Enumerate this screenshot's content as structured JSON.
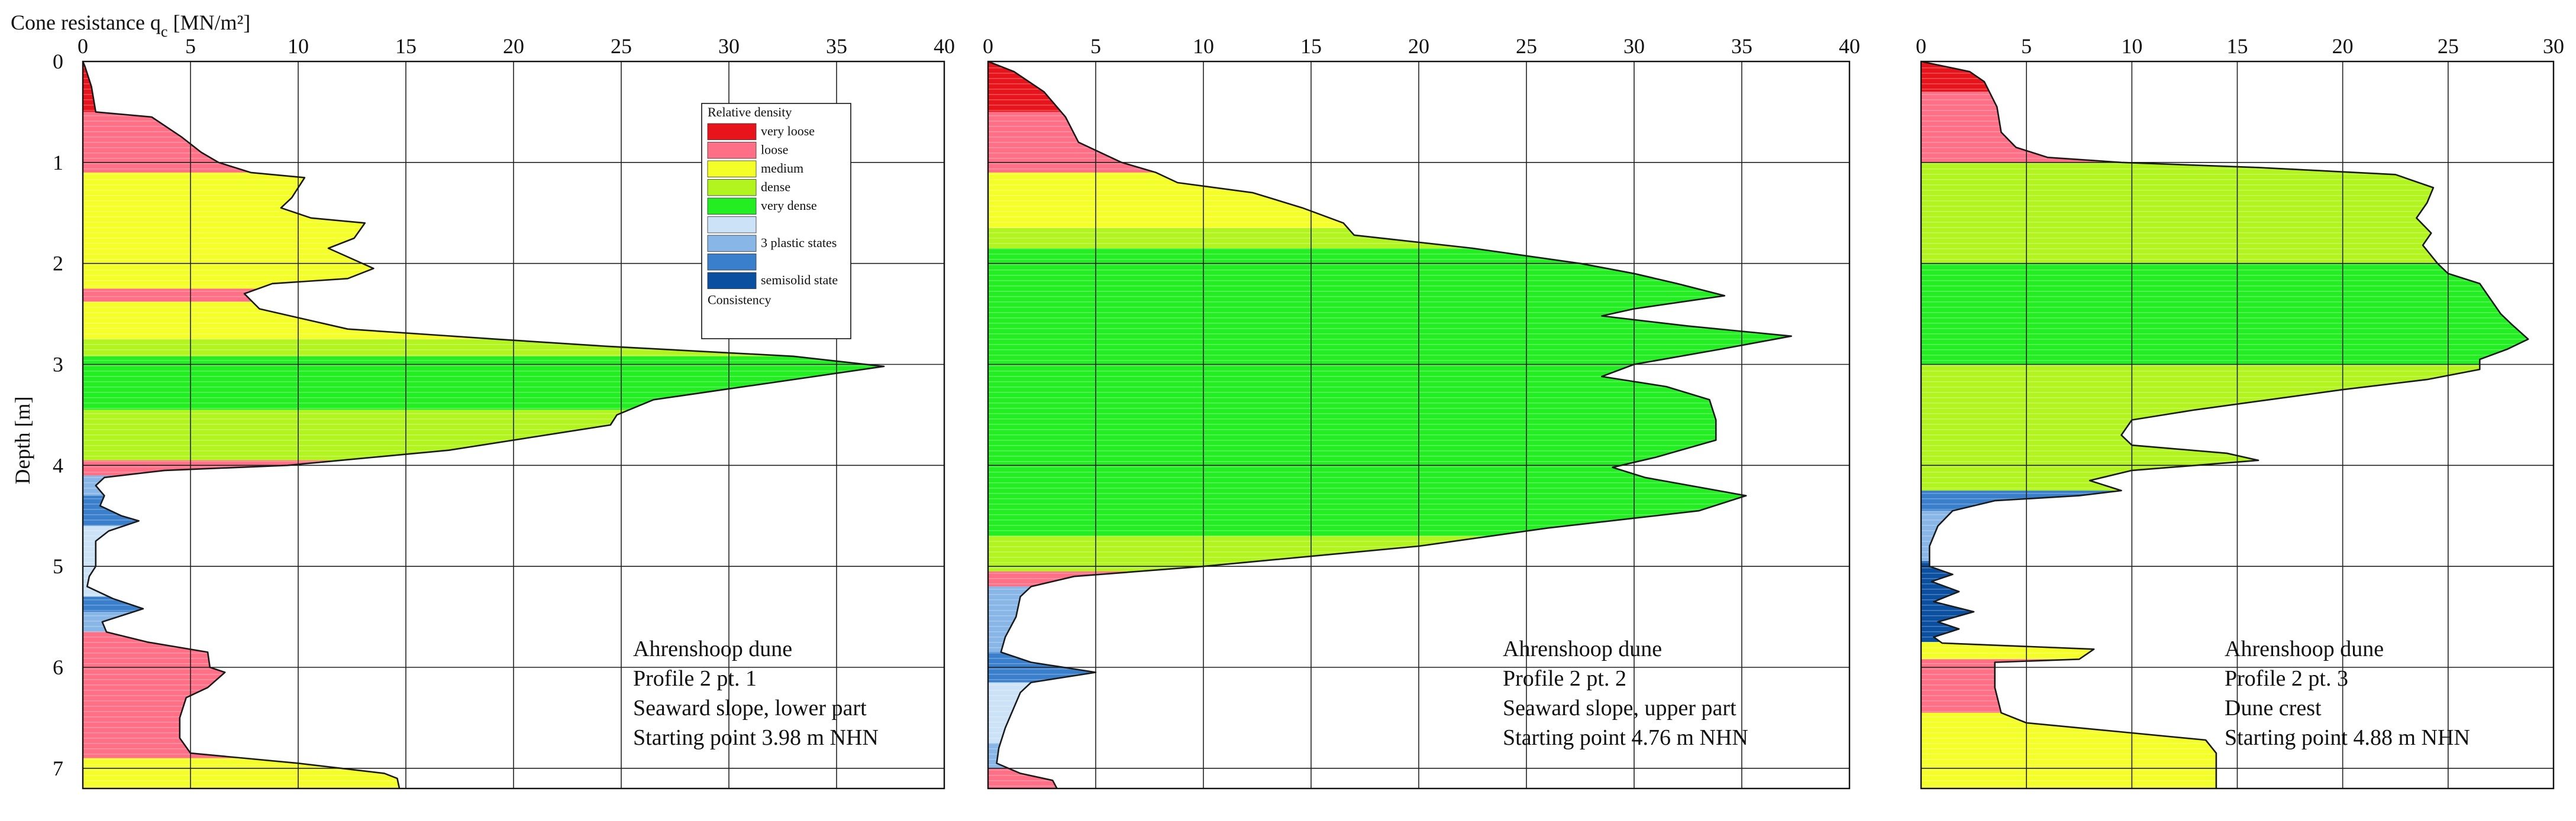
{
  "colors": {
    "very_loose": "#e8141c",
    "loose": "#ff6f86",
    "medium": "#f4ff28",
    "dense": "#b2f41e",
    "very_dense": "#22ee22",
    "plastic_1": "#cce2f6",
    "plastic_2": "#88b6e6",
    "plastic_3": "#3a7fcc",
    "semisolid": "#0b4fa0"
  },
  "chart_data": [
    {
      "type": "area",
      "orientation": "vertical-profile",
      "title": "",
      "xlabel": "Cone resistance q",
      "xlabel_sub": "c",
      "xlabel_unit": " [MN/m²]",
      "ylabel": "Depth [m]",
      "xlim": [
        0,
        40
      ],
      "ylim": [
        0,
        7.2
      ],
      "xticks": [
        "0",
        "5",
        "10",
        "15",
        "20",
        "25",
        "30",
        "35",
        "40"
      ],
      "yticks": [
        "0",
        "1",
        "2",
        "3",
        "4",
        "5",
        "6",
        "7"
      ],
      "grid": true,
      "annotation": [
        "Ahrenshoop dune",
        "Profile 2 pt. 1",
        "Seaward slope, lower part",
        "Starting point  3.98 m NHN"
      ],
      "profile": [
        [
          0.0,
          0.0
        ],
        [
          0.1,
          0.05
        ],
        [
          0.4,
          0.25
        ],
        [
          0.6,
          0.5
        ],
        [
          3.2,
          0.55
        ],
        [
          4.6,
          0.75
        ],
        [
          5.5,
          0.9
        ],
        [
          6.3,
          1.0
        ],
        [
          7.8,
          1.1
        ],
        [
          10.3,
          1.15
        ],
        [
          9.7,
          1.35
        ],
        [
          9.2,
          1.45
        ],
        [
          10.6,
          1.55
        ],
        [
          13.1,
          1.6
        ],
        [
          12.6,
          1.75
        ],
        [
          11.4,
          1.85
        ],
        [
          13.5,
          2.05
        ],
        [
          12.3,
          2.15
        ],
        [
          8.8,
          2.2
        ],
        [
          7.5,
          2.3
        ],
        [
          8.2,
          2.45
        ],
        [
          12.3,
          2.65
        ],
        [
          19.2,
          2.75
        ],
        [
          24.3,
          2.82
        ],
        [
          33.0,
          2.92
        ],
        [
          37.2,
          3.02
        ],
        [
          33.0,
          3.15
        ],
        [
          26.5,
          3.35
        ],
        [
          24.8,
          3.5
        ],
        [
          24.5,
          3.6
        ],
        [
          17.0,
          3.85
        ],
        [
          9.5,
          4.0
        ],
        [
          3.8,
          4.05
        ],
        [
          1.0,
          4.12
        ],
        [
          0.6,
          4.2
        ],
        [
          1.0,
          4.3
        ],
        [
          0.8,
          4.4
        ],
        [
          1.8,
          4.5
        ],
        [
          2.6,
          4.55
        ],
        [
          1.2,
          4.65
        ],
        [
          0.6,
          4.75
        ],
        [
          0.6,
          5.0
        ],
        [
          0.3,
          5.1
        ],
        [
          0.2,
          5.2
        ],
        [
          1.4,
          5.32
        ],
        [
          2.8,
          5.42
        ],
        [
          0.9,
          5.55
        ],
        [
          1.1,
          5.65
        ],
        [
          3.0,
          5.75
        ],
        [
          5.8,
          5.85
        ],
        [
          5.9,
          6.0
        ],
        [
          6.6,
          6.05
        ],
        [
          5.8,
          6.2
        ],
        [
          4.8,
          6.3
        ],
        [
          4.5,
          6.5
        ],
        [
          4.5,
          6.7
        ],
        [
          5.0,
          6.85
        ],
        [
          10.0,
          6.95
        ],
        [
          14.0,
          7.05
        ],
        [
          14.6,
          7.1
        ],
        [
          14.7,
          7.2
        ]
      ],
      "layers": [
        {
          "top": 0.0,
          "bottom": 0.5,
          "class": "very_loose"
        },
        {
          "top": 0.5,
          "bottom": 1.1,
          "class": "loose"
        },
        {
          "top": 1.1,
          "bottom": 2.25,
          "class": "medium"
        },
        {
          "top": 2.25,
          "bottom": 2.38,
          "class": "loose"
        },
        {
          "top": 2.38,
          "bottom": 2.75,
          "class": "medium"
        },
        {
          "top": 2.75,
          "bottom": 2.92,
          "class": "dense"
        },
        {
          "top": 2.92,
          "bottom": 3.45,
          "class": "very_dense"
        },
        {
          "top": 3.45,
          "bottom": 3.95,
          "class": "dense"
        },
        {
          "top": 3.95,
          "bottom": 4.1,
          "class": "loose"
        },
        {
          "top": 4.1,
          "bottom": 4.3,
          "class": "plastic_2"
        },
        {
          "top": 4.3,
          "bottom": 4.6,
          "class": "plastic_3"
        },
        {
          "top": 4.6,
          "bottom": 5.3,
          "class": "plastic_1"
        },
        {
          "top": 5.3,
          "bottom": 5.45,
          "class": "plastic_3"
        },
        {
          "top": 5.45,
          "bottom": 5.65,
          "class": "plastic_2"
        },
        {
          "top": 5.65,
          "bottom": 6.9,
          "class": "loose"
        },
        {
          "top": 6.9,
          "bottom": 7.2,
          "class": "medium"
        }
      ],
      "legend": {
        "title": "Relative  density",
        "footer": "Consistency",
        "entries": [
          {
            "class": "very_loose",
            "label": "very loose"
          },
          {
            "class": "loose",
            "label": "loose"
          },
          {
            "class": "medium",
            "label": "medium"
          },
          {
            "class": "dense",
            "label": "dense"
          },
          {
            "class": "very_dense",
            "label": "very dense"
          },
          {
            "class": "plastic_1",
            "label": ""
          },
          {
            "class": "plastic_2",
            "label": "3 plastic  states"
          },
          {
            "class": "plastic_3",
            "label": ""
          },
          {
            "class": "semisolid",
            "label": "semisolid  state"
          }
        ],
        "position": "top-right"
      }
    },
    {
      "type": "area",
      "orientation": "vertical-profile",
      "title": "",
      "xlim": [
        0,
        40
      ],
      "ylim": [
        0,
        7.2
      ],
      "xticks": [
        "0",
        "5",
        "10",
        "15",
        "20",
        "25",
        "30",
        "35",
        "40"
      ],
      "grid": true,
      "annotation": [
        "Ahrenshoop dune",
        "Profile 2 pt. 2",
        "Seaward slope, upper part",
        "Starting point  4.76 m NHN"
      ],
      "profile": [
        [
          0.0,
          0.0
        ],
        [
          1.2,
          0.1
        ],
        [
          2.6,
          0.3
        ],
        [
          3.6,
          0.55
        ],
        [
          4.2,
          0.8
        ],
        [
          6.2,
          1.0
        ],
        [
          7.8,
          1.1
        ],
        [
          8.8,
          1.2
        ],
        [
          12.3,
          1.3
        ],
        [
          14.6,
          1.45
        ],
        [
          16.5,
          1.6
        ],
        [
          17.0,
          1.72
        ],
        [
          22.5,
          1.85
        ],
        [
          27.5,
          2.0
        ],
        [
          30.0,
          2.1
        ],
        [
          32.0,
          2.2
        ],
        [
          34.2,
          2.32
        ],
        [
          30.0,
          2.45
        ],
        [
          28.5,
          2.52
        ],
        [
          32.5,
          2.62
        ],
        [
          37.3,
          2.72
        ],
        [
          34.0,
          2.85
        ],
        [
          30.0,
          3.0
        ],
        [
          28.5,
          3.12
        ],
        [
          31.5,
          3.22
        ],
        [
          33.5,
          3.35
        ],
        [
          33.8,
          3.55
        ],
        [
          33.8,
          3.75
        ],
        [
          31.0,
          3.92
        ],
        [
          29.0,
          4.02
        ],
        [
          30.5,
          4.12
        ],
        [
          35.2,
          4.3
        ],
        [
          33.0,
          4.45
        ],
        [
          26.0,
          4.62
        ],
        [
          20.0,
          4.8
        ],
        [
          10.0,
          5.0
        ],
        [
          4.0,
          5.1
        ],
        [
          2.0,
          5.2
        ],
        [
          1.5,
          5.3
        ],
        [
          1.3,
          5.5
        ],
        [
          0.8,
          5.7
        ],
        [
          0.6,
          5.85
        ],
        [
          2.0,
          5.95
        ],
        [
          5.0,
          6.05
        ],
        [
          2.0,
          6.15
        ],
        [
          1.5,
          6.25
        ],
        [
          1.2,
          6.4
        ],
        [
          0.8,
          6.6
        ],
        [
          0.5,
          6.8
        ],
        [
          0.4,
          6.95
        ],
        [
          1.5,
          7.05
        ],
        [
          3.0,
          7.12
        ],
        [
          3.2,
          7.2
        ]
      ],
      "layers": [
        {
          "top": 0.0,
          "bottom": 0.5,
          "class": "very_loose"
        },
        {
          "top": 0.5,
          "bottom": 1.1,
          "class": "loose"
        },
        {
          "top": 1.1,
          "bottom": 1.65,
          "class": "medium"
        },
        {
          "top": 1.65,
          "bottom": 1.85,
          "class": "dense"
        },
        {
          "top": 1.85,
          "bottom": 4.7,
          "class": "very_dense"
        },
        {
          "top": 4.7,
          "bottom": 5.05,
          "class": "dense"
        },
        {
          "top": 5.05,
          "bottom": 5.2,
          "class": "loose"
        },
        {
          "top": 5.2,
          "bottom": 5.85,
          "class": "plastic_2"
        },
        {
          "top": 5.85,
          "bottom": 6.15,
          "class": "plastic_3"
        },
        {
          "top": 6.15,
          "bottom": 6.75,
          "class": "plastic_1"
        },
        {
          "top": 6.75,
          "bottom": 7.0,
          "class": "plastic_2"
        },
        {
          "top": 7.0,
          "bottom": 7.2,
          "class": "loose"
        }
      ]
    },
    {
      "type": "area",
      "orientation": "vertical-profile",
      "title": "",
      "xlim": [
        0,
        30
      ],
      "ylim": [
        0,
        7.2
      ],
      "xticks": [
        "0",
        "5",
        "10",
        "15",
        "20",
        "25",
        "30"
      ],
      "grid": true,
      "annotation": [
        "Ahrenshoop dune",
        "Profile 2 pt. 3",
        "Dune crest",
        "Starting point  4.88 m NHN"
      ],
      "profile": [
        [
          0.0,
          0.0
        ],
        [
          2.3,
          0.1
        ],
        [
          3.0,
          0.2
        ],
        [
          3.6,
          0.45
        ],
        [
          3.8,
          0.7
        ],
        [
          4.5,
          0.85
        ],
        [
          6.0,
          0.95
        ],
        [
          9.5,
          1.0
        ],
        [
          16.0,
          1.05
        ],
        [
          22.5,
          1.12
        ],
        [
          24.3,
          1.25
        ],
        [
          24.0,
          1.4
        ],
        [
          23.5,
          1.55
        ],
        [
          24.2,
          1.7
        ],
        [
          23.8,
          1.82
        ],
        [
          24.5,
          2.0
        ],
        [
          25.0,
          2.1
        ],
        [
          26.5,
          2.2
        ],
        [
          27.0,
          2.35
        ],
        [
          27.5,
          2.5
        ],
        [
          28.0,
          2.6
        ],
        [
          28.8,
          2.75
        ],
        [
          27.8,
          2.85
        ],
        [
          26.5,
          2.95
        ],
        [
          26.5,
          3.05
        ],
        [
          24.0,
          3.15
        ],
        [
          20.0,
          3.25
        ],
        [
          16.5,
          3.35
        ],
        [
          13.0,
          3.45
        ],
        [
          10.0,
          3.55
        ],
        [
          9.5,
          3.7
        ],
        [
          10.0,
          3.8
        ],
        [
          14.5,
          3.88
        ],
        [
          16.0,
          3.95
        ],
        [
          10.0,
          4.05
        ],
        [
          8.0,
          4.15
        ],
        [
          9.5,
          4.25
        ],
        [
          7.5,
          4.3
        ],
        [
          3.5,
          4.35
        ],
        [
          1.5,
          4.45
        ],
        [
          0.8,
          4.6
        ],
        [
          0.4,
          4.8
        ],
        [
          0.4,
          5.0
        ],
        [
          1.5,
          5.08
        ],
        [
          0.5,
          5.15
        ],
        [
          1.8,
          5.25
        ],
        [
          0.6,
          5.35
        ],
        [
          2.5,
          5.45
        ],
        [
          0.8,
          5.55
        ],
        [
          1.8,
          5.62
        ],
        [
          0.6,
          5.7
        ],
        [
          1.0,
          5.76
        ],
        [
          8.2,
          5.82
        ],
        [
          7.5,
          5.92
        ],
        [
          3.5,
          5.95
        ],
        [
          3.5,
          6.2
        ],
        [
          3.8,
          6.45
        ],
        [
          5.0,
          6.55
        ],
        [
          10.0,
          6.65
        ],
        [
          13.5,
          6.72
        ],
        [
          14.0,
          6.85
        ],
        [
          14.0,
          7.2
        ]
      ],
      "layers": [
        {
          "top": 0.0,
          "bottom": 0.3,
          "class": "very_loose"
        },
        {
          "top": 0.3,
          "bottom": 1.0,
          "class": "loose"
        },
        {
          "top": 1.0,
          "bottom": 2.0,
          "class": "dense"
        },
        {
          "top": 2.0,
          "bottom": 3.0,
          "class": "very_dense"
        },
        {
          "top": 3.0,
          "bottom": 4.25,
          "class": "dense"
        },
        {
          "top": 4.25,
          "bottom": 4.45,
          "class": "plastic_3"
        },
        {
          "top": 4.45,
          "bottom": 4.95,
          "class": "plastic_2"
        },
        {
          "top": 4.95,
          "bottom": 5.75,
          "class": "semisolid"
        },
        {
          "top": 5.75,
          "bottom": 5.92,
          "class": "medium"
        },
        {
          "top": 5.92,
          "bottom": 6.45,
          "class": "loose"
        },
        {
          "top": 6.45,
          "bottom": 7.2,
          "class": "medium"
        }
      ]
    }
  ]
}
